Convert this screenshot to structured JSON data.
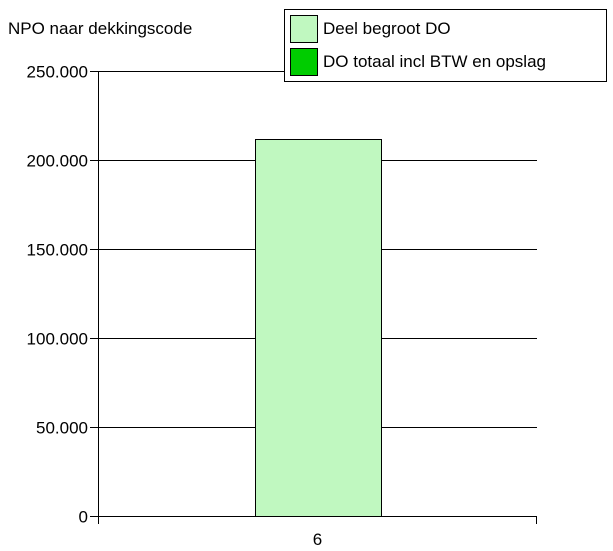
{
  "chart_data": {
    "type": "bar",
    "title": "NPO naar dekkingscode",
    "categories": [
      "6"
    ],
    "series": [
      {
        "name": "Deel begroot DO",
        "color": "#c0f8c0",
        "values": [
          212000
        ]
      },
      {
        "name": "DO totaal incl BTW en opslag",
        "color": "#00cc00",
        "values": [
          0
        ]
      }
    ],
    "ylim": [
      0,
      250000
    ],
    "yticks": [
      0,
      50000,
      100000,
      150000,
      200000,
      250000
    ],
    "ytick_labels": [
      "0",
      "50.000",
      "100.000",
      "150.000",
      "200.000",
      "250.000"
    ],
    "grid": true,
    "legend_position": "top-right"
  }
}
